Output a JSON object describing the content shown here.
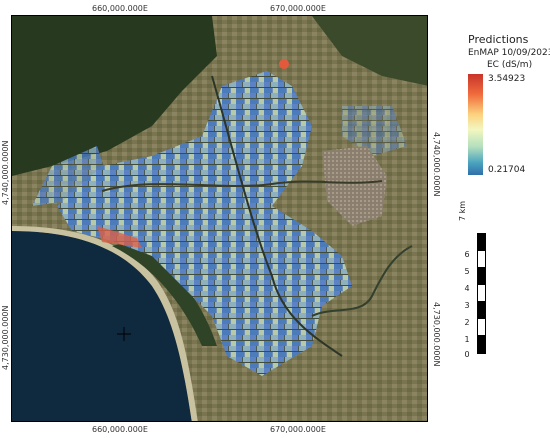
{
  "legend": {
    "title": "Predictions",
    "subtitle": "EnMAP 10/09/2023",
    "unit_label": "EC (dS/m)",
    "max_label": "3.54923",
    "min_label": "0.21704"
  },
  "coordinates": {
    "top_left": "660,000.000E",
    "top_right": "670,000.000E",
    "bottom_left": "660,000.000E",
    "bottom_right": "670,000.000E",
    "left_upper": "4,740,000.000N",
    "left_lower": "4,730,000.000N",
    "right_upper": "4,740,000.000N",
    "right_lower": "4,730,000.000N"
  },
  "scale_bar": {
    "unit": "km",
    "labels": [
      "7",
      "6",
      "5",
      "4",
      "3",
      "2",
      "1",
      "0"
    ]
  },
  "colors": {
    "sea": "#0f2a3f",
    "land": "#5d5f3e",
    "forest": "#27391f",
    "ec_low": "#2f6fa9",
    "ec_high": "#c8342a"
  }
}
